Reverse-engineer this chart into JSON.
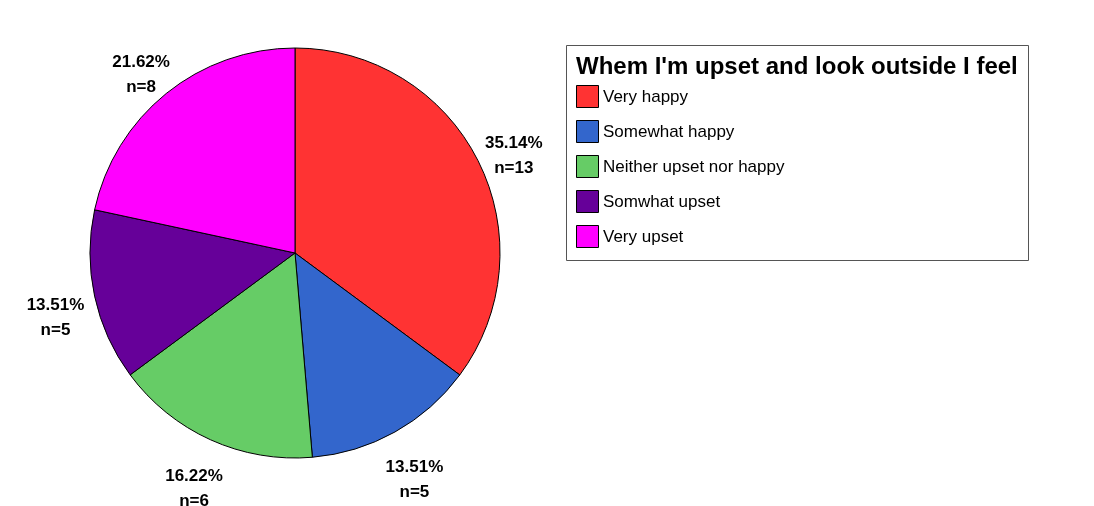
{
  "chart_data": {
    "type": "pie",
    "legend_title": "Whem I'm upset and look outside I feel",
    "categories": [
      "Very happy",
      "Somewhat happy",
      "Neither upset nor happy",
      "Somwhat upset",
      "Very upset"
    ],
    "values": [
      35.14,
      13.51,
      16.22,
      13.51,
      21.62
    ],
    "colors": [
      "#ff3333",
      "#3366cc",
      "#66cc66",
      "#660099",
      "#ff00ff"
    ],
    "value_labels": [
      "35.14%\nn=13",
      "13.51%\nn=5",
      "16.22%\nn=6",
      "13.51%\nn=5",
      "21.62%\nn=8"
    ],
    "legend": "right"
  }
}
